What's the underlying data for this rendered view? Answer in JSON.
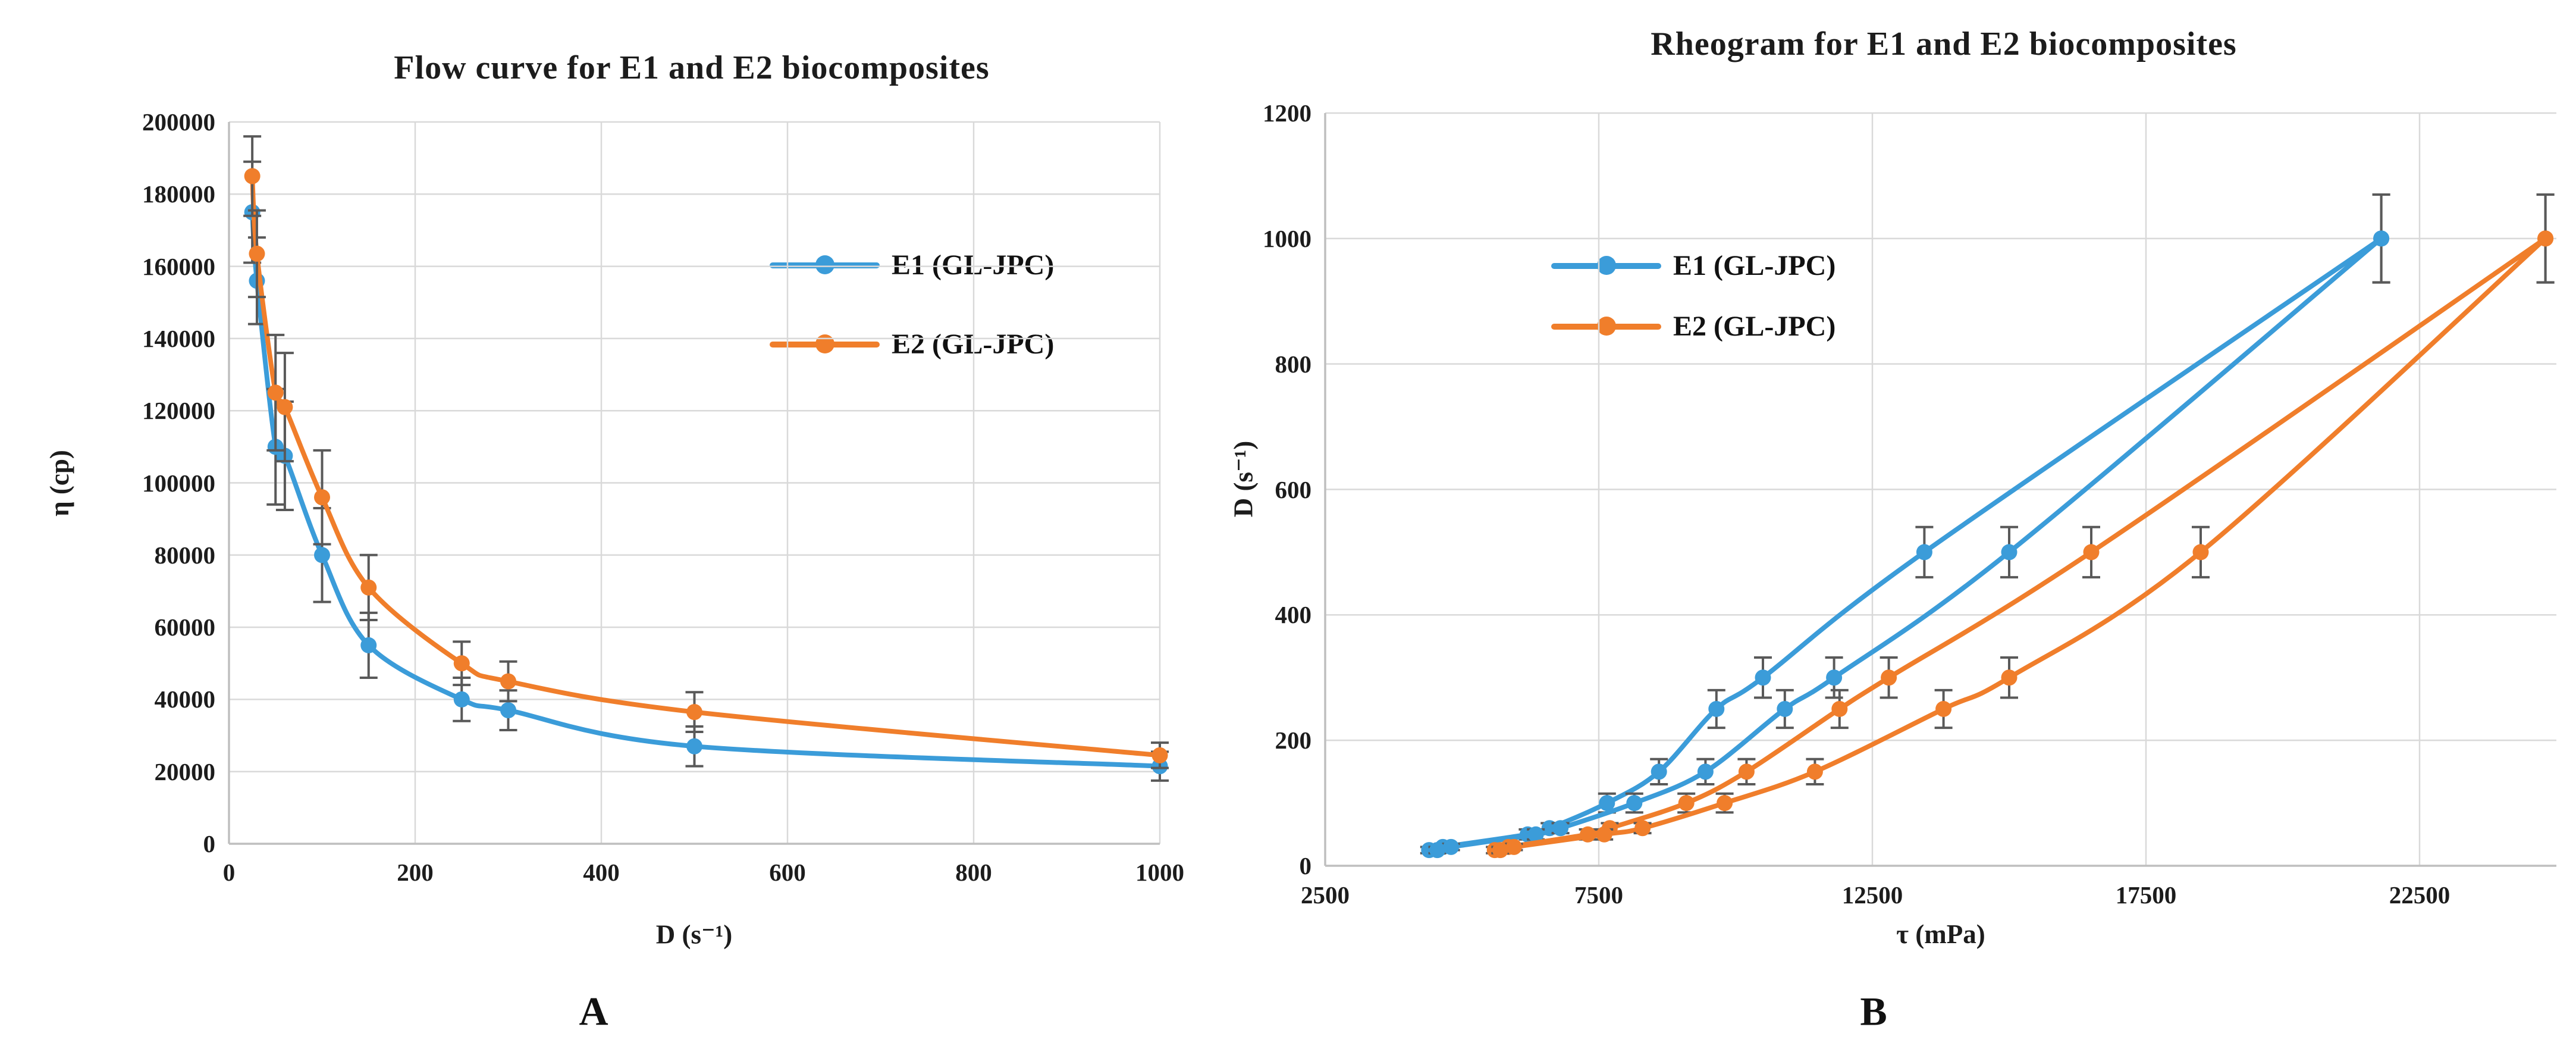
{
  "panel_letters": [
    "A",
    "B"
  ],
  "style": {
    "background": "#ffffff",
    "series_blue": "#3b9cd9",
    "series_orange": "#f07e2b",
    "gridline_color": "#d9d9d9",
    "axis_line_color": "#bfbfbf",
    "error_bar_color": "#595959",
    "text_color": "#1c1c1c"
  },
  "chart_data": [
    {
      "type": "line",
      "title": "Flow curve for E1 and E2 biocomposites",
      "xlabel": "D (s⁻¹)",
      "ylabel": "η (cp)",
      "xlim": [
        0,
        1000
      ],
      "ylim": [
        0,
        200000
      ],
      "xticks": [
        0,
        200,
        400,
        600,
        800,
        1000
      ],
      "yticks": [
        0,
        20000,
        40000,
        60000,
        80000,
        100000,
        120000,
        140000,
        160000,
        180000,
        200000
      ],
      "grid": true,
      "legend_position": "inside-upper-right",
      "legend_labels": [
        "E1 (GL-JPC)",
        "E2 (GL-JPC)"
      ],
      "x": [
        25,
        30,
        50,
        60,
        100,
        150,
        250,
        300,
        500,
        1000
      ],
      "series": [
        {
          "name": "E1 (GL-JPC)",
          "color": "#3b9cd9",
          "in_legend": true,
          "values": [
            175000,
            156000,
            110000,
            107500,
            80000,
            55000,
            40000,
            37000,
            27000,
            21500
          ],
          "errors": [
            14000,
            12000,
            16000,
            15000,
            13000,
            9000,
            6000,
            5500,
            5500,
            4000
          ]
        },
        {
          "name": "E2 (GL-JPC)",
          "color": "#f07e2b",
          "in_legend": true,
          "values": [
            185000,
            163500,
            125000,
            121000,
            96000,
            71000,
            50000,
            45000,
            36500,
            24500
          ],
          "errors": [
            11000,
            12000,
            16000,
            15000,
            13000,
            9000,
            6000,
            5500,
            5500,
            3500
          ]
        }
      ]
    },
    {
      "type": "line",
      "title": "Rheogram for E1 and E2 biocomposites",
      "xlabel": "τ (mPa)",
      "ylabel": "D (s⁻¹)",
      "xlim": [
        2500,
        25000
      ],
      "ylim": [
        0,
        1200
      ],
      "xticks": [
        2500,
        7500,
        12500,
        17500,
        22500
      ],
      "yticks": [
        0,
        200,
        400,
        600,
        800,
        1000,
        1200
      ],
      "grid": true,
      "legend_position": "inside-upper-left",
      "legend_labels": [
        "E1 (GL-JPC)",
        "E2 (GL-JPC)"
      ],
      "series": [
        {
          "name": "E1 (GL-JPC)",
          "segment": "up",
          "color": "#3b9cd9",
          "in_legend": true,
          "points": [
            [
              4400,
              25
            ],
            [
              4650,
              30
            ],
            [
              6200,
              50
            ],
            [
              6600,
              60
            ],
            [
              7650,
              100
            ],
            [
              8600,
              150
            ],
            [
              9650,
              250
            ],
            [
              10500,
              300
            ],
            [
              13450,
              500
            ],
            [
              21800,
              1000
            ]
          ],
          "errors": [
            5,
            5,
            8,
            8,
            15,
            20,
            30,
            32,
            40,
            70
          ]
        },
        {
          "name": "E1 (GL-JPC)",
          "segment": "down",
          "color": "#3b9cd9",
          "in_legend": false,
          "points": [
            [
              21800,
              1000
            ],
            [
              15000,
              500
            ],
            [
              11800,
              300
            ],
            [
              10900,
              250
            ],
            [
              9450,
              150
            ],
            [
              8150,
              100
            ],
            [
              6800,
              60
            ],
            [
              6350,
              50
            ],
            [
              4800,
              30
            ],
            [
              4550,
              25
            ]
          ],
          "errors": [
            70,
            40,
            32,
            30,
            20,
            15,
            8,
            8,
            5,
            5
          ]
        },
        {
          "name": "E2 (GL-JPC)",
          "segment": "up",
          "color": "#f07e2b",
          "in_legend": true,
          "points": [
            [
              5600,
              25
            ],
            [
              5850,
              30
            ],
            [
              7300,
              50
            ],
            [
              7700,
              60
            ],
            [
              9100,
              100
            ],
            [
              10200,
              150
            ],
            [
              11900,
              250
            ],
            [
              12800,
              300
            ],
            [
              16500,
              500
            ],
            [
              24800,
              1000
            ]
          ],
          "errors": [
            5,
            5,
            8,
            8,
            15,
            20,
            30,
            32,
            40,
            70
          ]
        },
        {
          "name": "E2 (GL-JPC)",
          "segment": "down",
          "color": "#f07e2b",
          "in_legend": false,
          "points": [
            [
              24800,
              1000
            ],
            [
              18500,
              500
            ],
            [
              15000,
              300
            ],
            [
              13800,
              250
            ],
            [
              11450,
              150
            ],
            [
              9800,
              100
            ],
            [
              8300,
              60
            ],
            [
              7600,
              50
            ],
            [
              5950,
              30
            ],
            [
              5700,
              25
            ]
          ],
          "errors": [
            70,
            40,
            32,
            30,
            20,
            15,
            8,
            8,
            5,
            5
          ]
        }
      ]
    }
  ]
}
